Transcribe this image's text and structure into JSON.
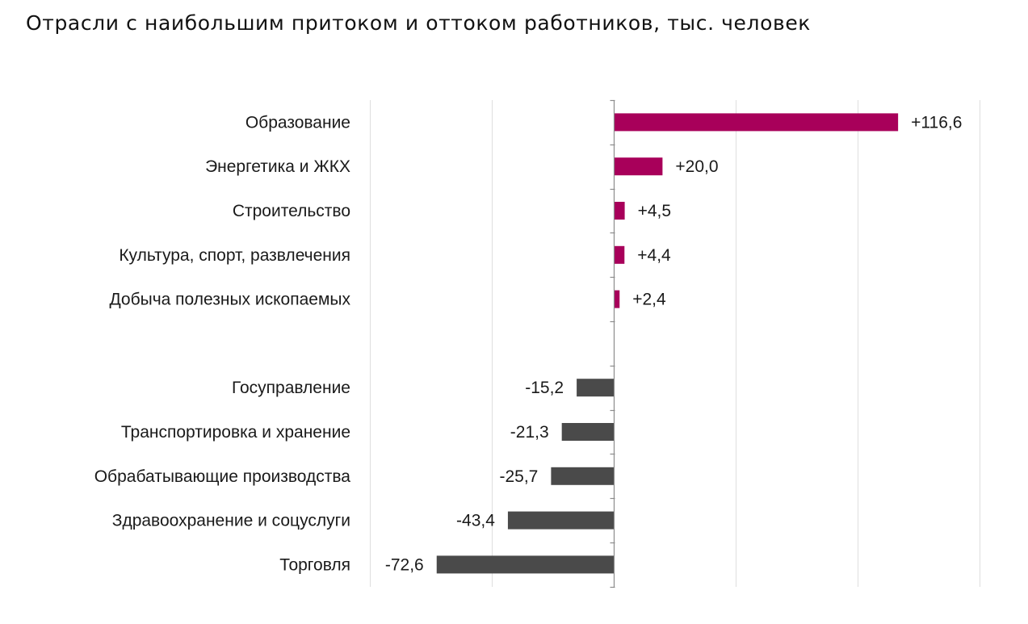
{
  "chart_data": {
    "type": "bar",
    "orientation": "horizontal",
    "title": "Отрасли с наибольшим притоком и оттоком работников, тыс. человек",
    "xlim": [
      -100,
      150
    ],
    "grid": true,
    "categories": [
      "Образование",
      "Энергетика и ЖКХ",
      "Строительство",
      "Культура, спорт, развлечения",
      "Добыча полезных ископаемых",
      "",
      "Госуправление",
      "Транспортировка и хранение",
      "Обрабатывающие производства",
      "Здравоохранение и соцуслуги",
      "Торговля"
    ],
    "values": [
      116.6,
      20.0,
      4.5,
      4.4,
      2.4,
      null,
      -15.2,
      -21.3,
      -25.7,
      -43.4,
      -72.6
    ],
    "value_labels": [
      "+116,6",
      "+20,0",
      "+4,5",
      "+4,4",
      "+2,4",
      "",
      "-15,2",
      "-21,3",
      "-25,7",
      "-43,4",
      "-72,6"
    ],
    "colors": {
      "positive": "#a8005a",
      "negative": "#4a4a4a",
      "grid": "#dedede",
      "axis": "#8c8c8c"
    }
  }
}
